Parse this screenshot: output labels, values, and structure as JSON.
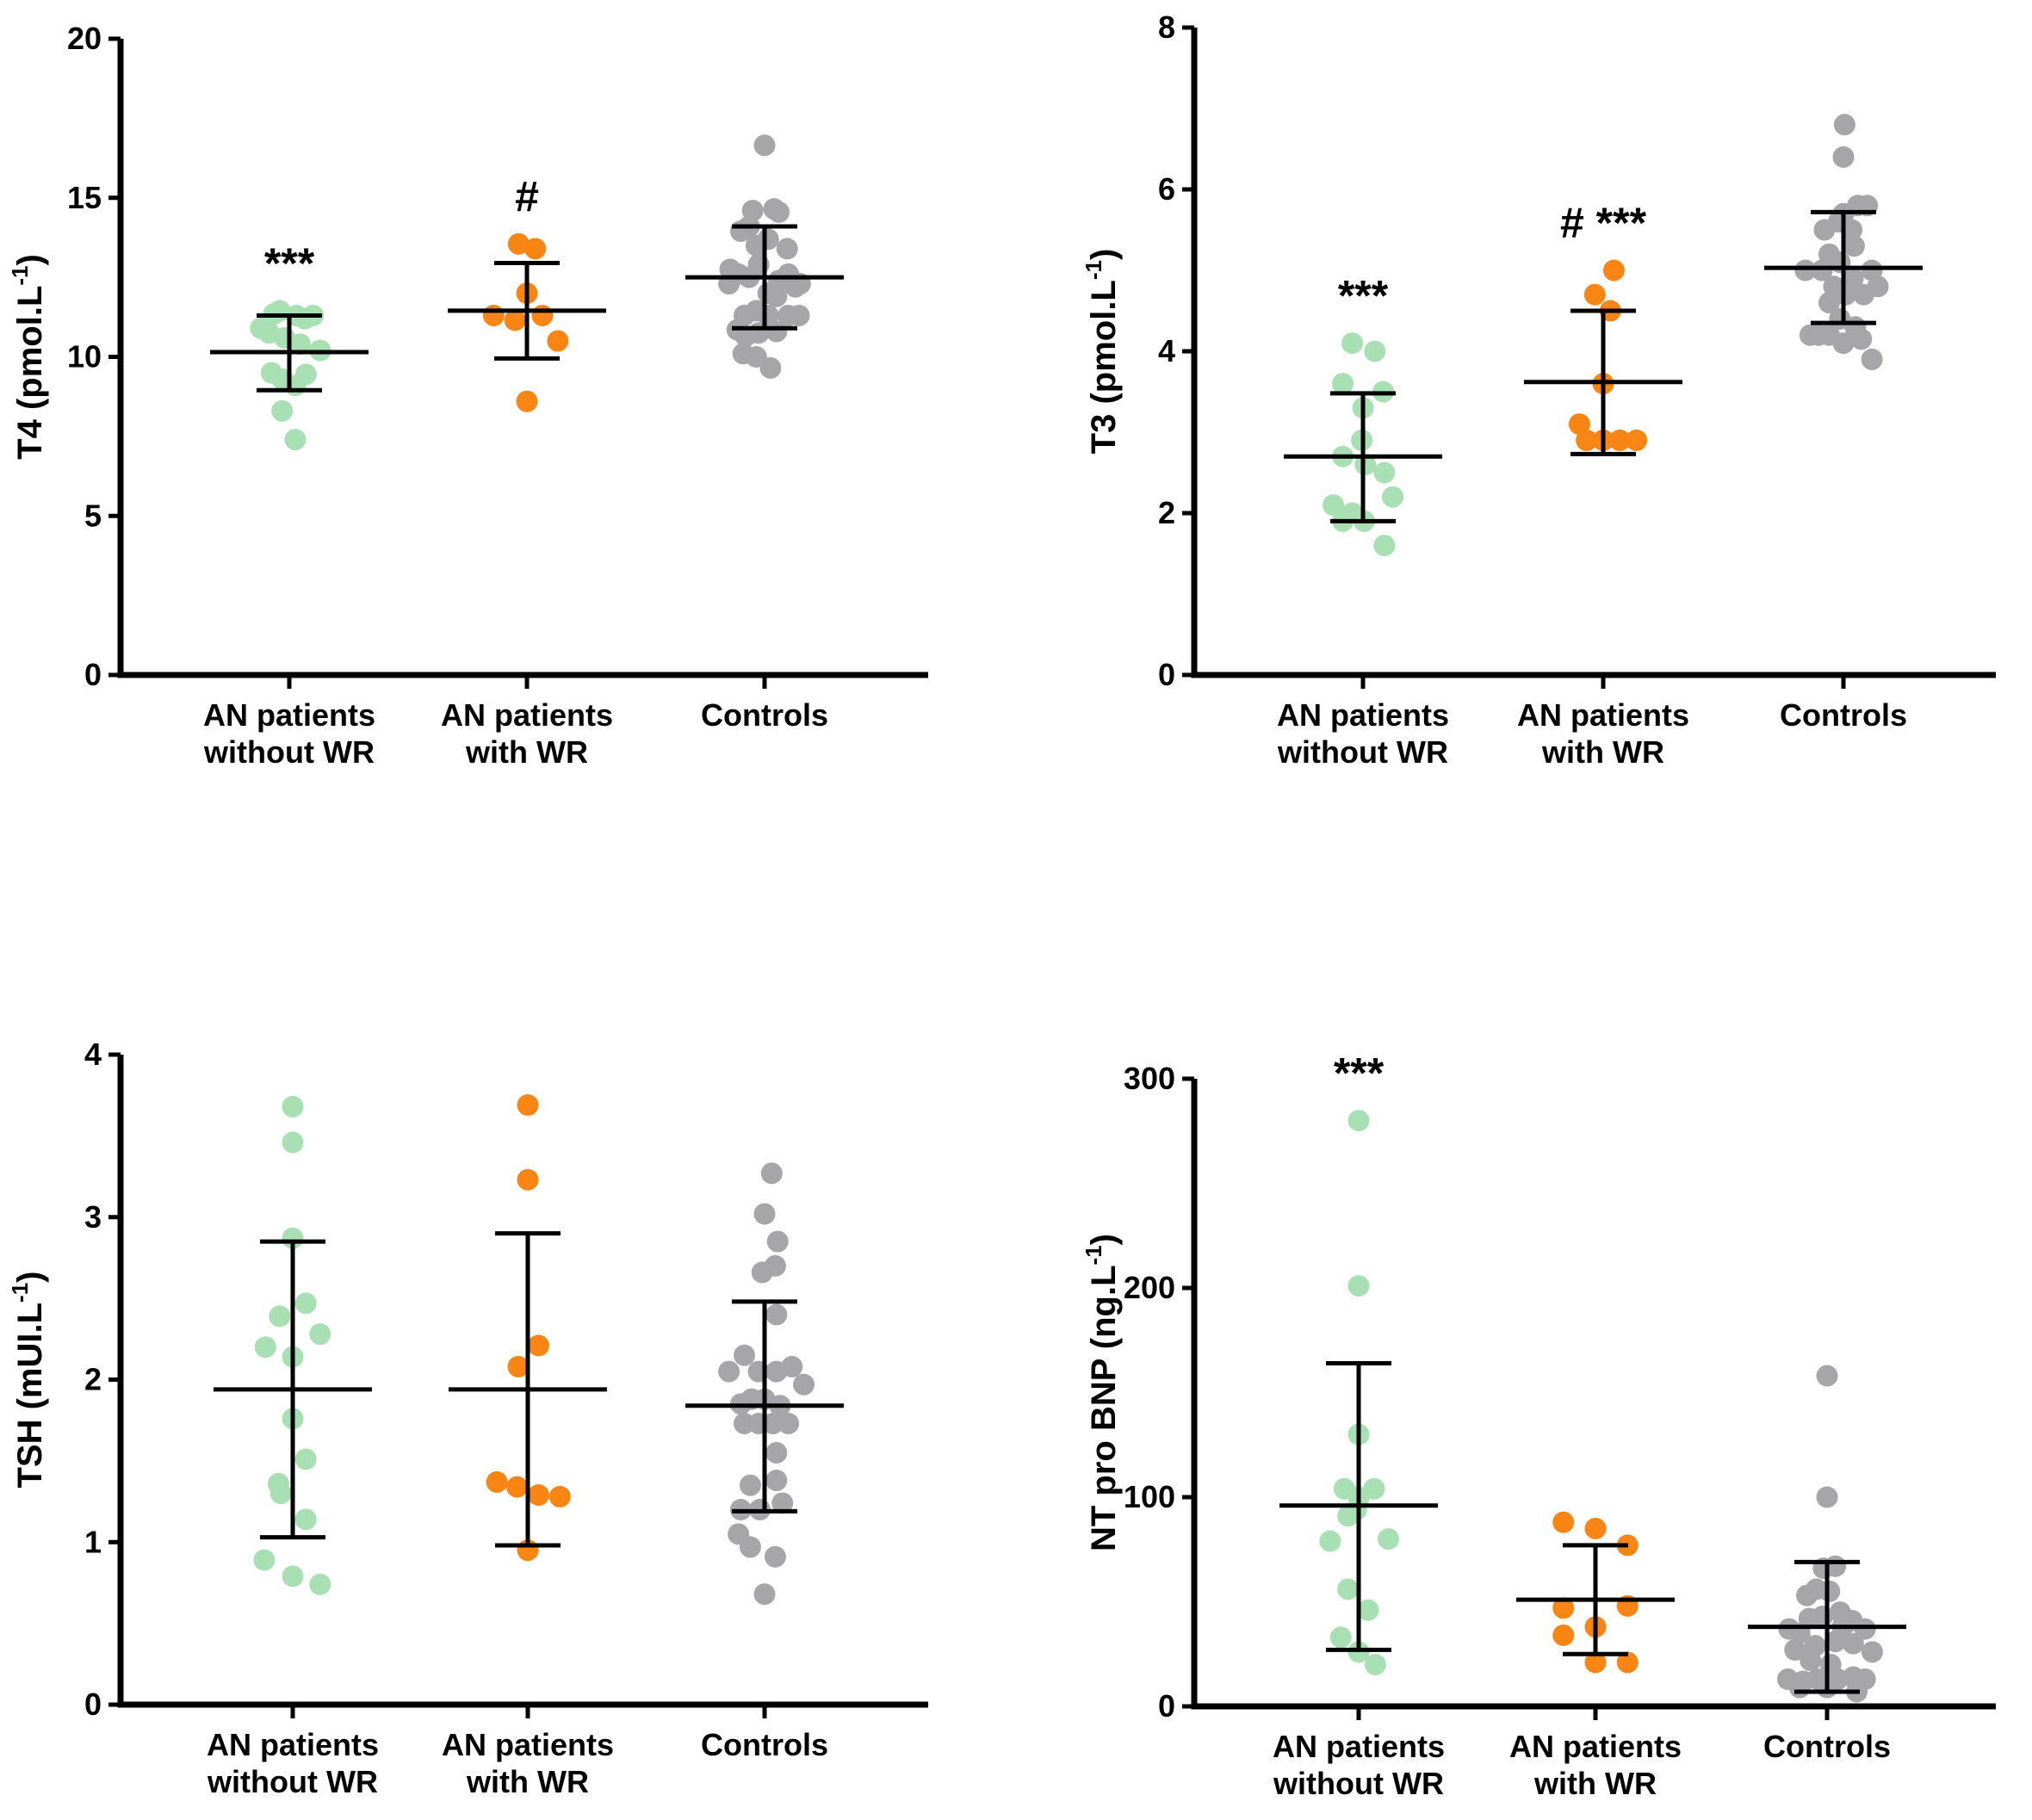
{
  "colors": {
    "an_without_wr": "#a8e0b3",
    "an_with_wr": "#f98514",
    "controls": "#a6a6a8",
    "axis": "#000000"
  },
  "chart_data": [
    {
      "id": "t4",
      "type": "scatter",
      "ylabel": "T4 (pmol.L",
      "ylabel_superscript": "-1",
      "ylabel_suffix": ")",
      "ylim": [
        0,
        20
      ],
      "yticks": [
        0,
        5,
        10,
        15,
        20
      ],
      "categories": [
        {
          "lines": [
            "AN patients",
            "without WR"
          ]
        },
        {
          "lines": [
            "AN patients",
            "with WR"
          ]
        },
        {
          "lines": [
            "Controls"
          ]
        }
      ],
      "series": [
        {
          "color_key": "an_without_wr",
          "mean": 10.15,
          "sd": [
            8.95,
            11.3
          ],
          "annotation": "***",
          "points": [
            [
              -0.24,
              10.9
            ],
            [
              -0.17,
              10.75
            ],
            [
              -0.04,
              10.6
            ],
            [
              -0.13,
              11.35
            ],
            [
              0.13,
              11.2
            ],
            [
              0.2,
              11.3
            ],
            [
              0.06,
              11.3
            ],
            [
              -0.08,
              11.45
            ],
            [
              0.26,
              10.2
            ],
            [
              0.09,
              10.4
            ],
            [
              -0.15,
              9.5
            ],
            [
              -0.06,
              9.3
            ],
            [
              0.05,
              9.1
            ],
            [
              0.14,
              9.45
            ],
            [
              -0.06,
              8.3
            ],
            [
              0.05,
              7.4
            ]
          ]
        },
        {
          "color_key": "an_with_wr",
          "mean": 11.45,
          "sd": [
            9.95,
            12.95
          ],
          "annotation": "#",
          "points": [
            [
              -0.28,
              11.3
            ],
            [
              -0.1,
              11.15
            ],
            [
              0.13,
              11.3
            ],
            [
              0.0,
              12.0
            ],
            [
              -0.07,
              13.55
            ],
            [
              0.07,
              13.4
            ],
            [
              0.26,
              10.5
            ],
            [
              0.0,
              8.6
            ]
          ]
        },
        {
          "color_key": "controls",
          "mean": 12.5,
          "sd": [
            10.9,
            14.1
          ],
          "points": [
            [
              0.0,
              16.65
            ],
            [
              -0.1,
              14.6
            ],
            [
              0.08,
              14.65
            ],
            [
              0.12,
              14.55
            ],
            [
              -0.13,
              14.1
            ],
            [
              -0.2,
              13.95
            ],
            [
              0.03,
              13.7
            ],
            [
              -0.07,
              13.5
            ],
            [
              0.19,
              13.4
            ],
            [
              -0.29,
              12.75
            ],
            [
              -0.22,
              12.6
            ],
            [
              -0.13,
              12.5
            ],
            [
              0.12,
              12.4
            ],
            [
              0.2,
              12.6
            ],
            [
              0.26,
              12.2
            ],
            [
              0.3,
              12.3
            ],
            [
              -0.3,
              12.3
            ],
            [
              -0.05,
              12.9
            ],
            [
              0.03,
              12.0
            ],
            [
              0.1,
              11.9
            ],
            [
              -0.17,
              11.3
            ],
            [
              -0.07,
              11.45
            ],
            [
              0.03,
              11.3
            ],
            [
              0.2,
              11.3
            ],
            [
              0.29,
              11.3
            ],
            [
              -0.23,
              10.85
            ],
            [
              -0.16,
              10.65
            ],
            [
              -0.05,
              10.75
            ],
            [
              0.1,
              10.8
            ],
            [
              -0.18,
              10.1
            ],
            [
              -0.07,
              10.0
            ],
            [
              0.05,
              9.65
            ]
          ]
        }
      ]
    },
    {
      "id": "t3",
      "type": "scatter",
      "ylabel": "T3 (pmol.L",
      "ylabel_superscript": "-1",
      "ylabel_suffix": ")",
      "ylim": [
        0,
        8
      ],
      "yticks": [
        0,
        2,
        4,
        6,
        8
      ],
      "categories": [
        {
          "lines": [
            "AN patients",
            "without WR"
          ]
        },
        {
          "lines": [
            "AN patients",
            "with WR"
          ]
        },
        {
          "lines": [
            "Controls"
          ]
        }
      ],
      "series": [
        {
          "color_key": "an_without_wr",
          "mean": 2.7,
          "sd": [
            1.9,
            3.48
          ],
          "annotation": "***",
          "points": [
            [
              -0.09,
              4.1
            ],
            [
              0.1,
              4.0
            ],
            [
              -0.17,
              3.6
            ],
            [
              0.17,
              3.5
            ],
            [
              0.0,
              3.3
            ],
            [
              -0.01,
              2.9
            ],
            [
              -0.17,
              2.7
            ],
            [
              0.02,
              2.6
            ],
            [
              0.18,
              2.5
            ],
            [
              -0.25,
              2.1
            ],
            [
              -0.09,
              2.0
            ],
            [
              0.25,
              2.2
            ],
            [
              -0.17,
              1.9
            ],
            [
              0.01,
              1.9
            ],
            [
              0.18,
              1.6
            ]
          ]
        },
        {
          "color_key": "an_with_wr",
          "mean": 3.62,
          "sd": [
            2.73,
            4.5
          ],
          "annotation": "# ***",
          "points": [
            [
              -0.07,
              4.7
            ],
            [
              0.09,
              5.0
            ],
            [
              0.06,
              4.5
            ],
            [
              0.0,
              3.6
            ],
            [
              -0.2,
              3.1
            ],
            [
              -0.14,
              2.9
            ],
            [
              0.0,
              2.9
            ],
            [
              0.14,
              2.9
            ],
            [
              0.28,
              2.9
            ]
          ]
        },
        {
          "color_key": "controls",
          "mean": 5.03,
          "sd": [
            4.35,
            5.72
          ],
          "points": [
            [
              0.01,
              6.8
            ],
            [
              0.0,
              6.4
            ],
            [
              -0.16,
              5.5
            ],
            [
              0.0,
              5.7
            ],
            [
              0.12,
              5.8
            ],
            [
              0.2,
              5.8
            ],
            [
              -0.04,
              5.6
            ],
            [
              0.07,
              5.5
            ],
            [
              -0.12,
              5.2
            ],
            [
              -0.03,
              5.1
            ],
            [
              0.09,
              5.3
            ],
            [
              0.24,
              5.0
            ],
            [
              -0.32,
              5.0
            ],
            [
              -0.18,
              5.0
            ],
            [
              0.08,
              4.9
            ],
            [
              0.29,
              4.8
            ],
            [
              -0.08,
              4.8
            ],
            [
              -0.12,
              4.6
            ],
            [
              0.02,
              4.7
            ],
            [
              0.17,
              4.7
            ],
            [
              -0.03,
              4.4
            ],
            [
              0.1,
              4.3
            ],
            [
              -0.28,
              4.2
            ],
            [
              -0.21,
              4.2
            ],
            [
              -0.12,
              4.2
            ],
            [
              0.0,
              4.1
            ],
            [
              0.15,
              4.15
            ],
            [
              0.24,
              3.9
            ]
          ]
        }
      ]
    },
    {
      "id": "tsh",
      "type": "scatter",
      "ylabel": "TSH (mUI.L",
      "ylabel_superscript": "-1",
      "ylabel_suffix": ")",
      "ylim": [
        0,
        4
      ],
      "yticks": [
        0,
        1,
        2,
        3,
        4
      ],
      "categories": [
        {
          "lines": [
            "AN patients",
            "without WR"
          ]
        },
        {
          "lines": [
            "AN patients",
            "with WR"
          ]
        },
        {
          "lines": [
            "Controls"
          ]
        }
      ],
      "series": [
        {
          "color_key": "an_without_wr",
          "mean": 1.94,
          "sd": [
            1.03,
            2.85
          ],
          "points": [
            [
              0.0,
              3.68
            ],
            [
              0.0,
              3.46
            ],
            [
              0.0,
              2.87
            ],
            [
              0.11,
              2.47
            ],
            [
              -0.11,
              2.39
            ],
            [
              -0.23,
              2.2
            ],
            [
              0.23,
              2.28
            ],
            [
              0.0,
              2.14
            ],
            [
              0.0,
              1.76
            ],
            [
              0.11,
              1.51
            ],
            [
              -0.12,
              1.36
            ],
            [
              -0.1,
              1.3
            ],
            [
              0.11,
              1.14
            ],
            [
              -0.24,
              0.89
            ],
            [
              0.0,
              0.79
            ],
            [
              0.23,
              0.74
            ]
          ]
        },
        {
          "color_key": "an_with_wr",
          "mean": 1.94,
          "sd": [
            0.98,
            2.9
          ],
          "points": [
            [
              0.0,
              3.69
            ],
            [
              0.0,
              3.23
            ],
            [
              0.09,
              2.21
            ],
            [
              -0.08,
              2.08
            ],
            [
              -0.26,
              1.37
            ],
            [
              -0.09,
              1.34
            ],
            [
              0.09,
              1.29
            ],
            [
              0.27,
              1.28
            ],
            [
              0.0,
              0.95
            ]
          ]
        },
        {
          "color_key": "controls",
          "mean": 1.84,
          "sd": [
            1.19,
            2.48
          ],
          "points": [
            [
              0.06,
              3.27
            ],
            [
              0.0,
              3.02
            ],
            [
              0.11,
              2.85
            ],
            [
              -0.02,
              2.66
            ],
            [
              0.09,
              2.7
            ],
            [
              0.1,
              2.4
            ],
            [
              -0.3,
              2.05
            ],
            [
              -0.17,
              2.15
            ],
            [
              -0.05,
              2.05
            ],
            [
              0.1,
              2.05
            ],
            [
              0.23,
              2.08
            ],
            [
              0.33,
              1.97
            ],
            [
              -0.2,
              1.85
            ],
            [
              -0.11,
              1.88
            ],
            [
              0.0,
              1.88
            ],
            [
              0.13,
              1.84
            ],
            [
              -0.17,
              1.73
            ],
            [
              -0.05,
              1.73
            ],
            [
              0.07,
              1.73
            ],
            [
              0.2,
              1.73
            ],
            [
              0.1,
              1.55
            ],
            [
              -0.12,
              1.35
            ],
            [
              0.1,
              1.38
            ],
            [
              -0.2,
              1.2
            ],
            [
              -0.04,
              1.2
            ],
            [
              0.15,
              1.24
            ],
            [
              -0.22,
              1.05
            ],
            [
              -0.12,
              0.97
            ],
            [
              0.09,
              0.91
            ],
            [
              0.0,
              0.68
            ]
          ]
        }
      ]
    },
    {
      "id": "ntprobnp",
      "type": "scatter",
      "ylabel": "NT pro BNP (ng.L",
      "ylabel_superscript": "-1",
      "ylabel_suffix": ")",
      "ylim": [
        0,
        300
      ],
      "yticks": [
        0,
        100,
        200,
        300
      ],
      "categories": [
        {
          "lines": [
            "AN patients",
            "without WR"
          ]
        },
        {
          "lines": [
            "AN patients",
            "with WR"
          ]
        },
        {
          "lines": [
            "Controls"
          ]
        }
      ],
      "series": [
        {
          "color_key": "an_without_wr",
          "mean": 96,
          "sd": [
            27,
            164
          ],
          "annotation": "***",
          "points": [
            [
              0.0,
              280
            ],
            [
              0.0,
              201
            ],
            [
              0.0,
              130
            ],
            [
              -0.12,
              104
            ],
            [
              0.0,
              100
            ],
            [
              0.13,
              104
            ],
            [
              -0.02,
              94
            ],
            [
              -0.09,
              91
            ],
            [
              -0.24,
              79
            ],
            [
              0.25,
              80
            ],
            [
              -0.09,
              56
            ],
            [
              0.08,
              46
            ],
            [
              -0.15,
              33
            ],
            [
              0.0,
              26
            ],
            [
              0.14,
              20
            ]
          ]
        },
        {
          "color_key": "an_with_wr",
          "mean": 51,
          "sd": [
            25,
            77
          ],
          "points": [
            [
              -0.27,
              88
            ],
            [
              0.0,
              85
            ],
            [
              0.27,
              77
            ],
            [
              -0.27,
              47
            ],
            [
              0.27,
              48
            ],
            [
              -0.27,
              34
            ],
            [
              0.0,
              38
            ],
            [
              0.0,
              21
            ],
            [
              0.27,
              21
            ]
          ]
        },
        {
          "color_key": "controls",
          "mean": 38,
          "sd": [
            7,
            69
          ],
          "points": [
            [
              0.0,
              158
            ],
            [
              0.0,
              100
            ],
            [
              -0.03,
              66
            ],
            [
              0.07,
              67
            ],
            [
              -0.17,
              53
            ],
            [
              -0.09,
              56
            ],
            [
              0.02,
              55
            ],
            [
              0.11,
              45
            ],
            [
              -0.15,
              42
            ],
            [
              -0.04,
              43
            ],
            [
              0.21,
              41
            ],
            [
              -0.32,
              37
            ],
            [
              0.32,
              37
            ],
            [
              0.13,
              38
            ],
            [
              -0.23,
              35
            ],
            [
              -0.1,
              29
            ],
            [
              0.07,
              31
            ],
            [
              -0.27,
              27
            ],
            [
              0.22,
              30
            ],
            [
              -0.14,
              22
            ],
            [
              0.03,
              20
            ],
            [
              0.38,
              26
            ],
            [
              -0.33,
              13
            ],
            [
              -0.2,
              12
            ],
            [
              -0.08,
              13
            ],
            [
              0.09,
              13
            ],
            [
              0.22,
              14
            ],
            [
              0.32,
              13
            ],
            [
              -0.23,
              9
            ],
            [
              0.0,
              9
            ],
            [
              0.25,
              7
            ]
          ]
        }
      ]
    }
  ]
}
